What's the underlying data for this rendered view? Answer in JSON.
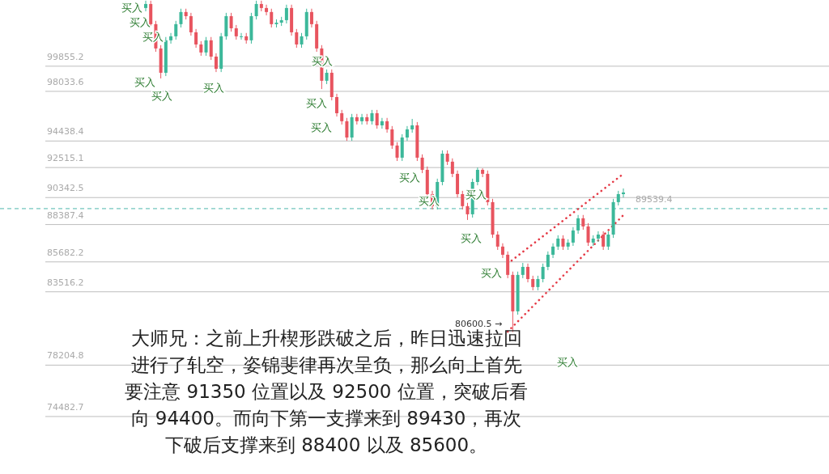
{
  "chart_data": {
    "type": "candlestick",
    "categories": [
      null,
      null,
      null,
      null,
      null,
      null,
      null,
      null,
      null,
      null,
      null,
      null,
      null,
      null,
      null,
      null,
      null,
      null,
      null,
      null,
      null,
      null,
      null,
      null,
      null,
      null,
      null,
      null,
      null,
      null,
      null,
      null,
      null,
      null,
      null,
      null,
      null,
      null,
      null,
      null,
      null,
      null,
      null,
      null,
      null,
      null,
      null,
      null,
      null,
      null,
      null,
      null,
      null,
      null,
      null,
      null,
      null,
      null,
      null,
      null,
      null,
      null,
      null,
      null,
      null,
      null,
      null,
      null,
      null,
      null,
      null,
      null,
      null,
      null,
      null,
      null,
      null,
      null,
      null,
      null,
      null,
      null,
      null,
      null,
      null,
      null,
      null,
      null,
      null,
      null,
      null,
      null,
      null,
      null,
      null,
      null
    ],
    "ylim": [
      70320,
      104650
    ],
    "tick_labels": false,
    "ohlc": [
      [
        104070,
        104600,
        103830,
        104360
      ],
      [
        104360,
        104600,
        102660,
        102900
      ],
      [
        102900,
        103140,
        100900,
        101140
      ],
      [
        101140,
        101380,
        98970,
        99380
      ],
      [
        99380,
        101970,
        99140,
        101730
      ],
      [
        101730,
        102260,
        101490,
        102020
      ],
      [
        102020,
        103140,
        101780,
        102900
      ],
      [
        102900,
        104020,
        102660,
        103780
      ],
      [
        103780,
        104020,
        103240,
        103480
      ],
      [
        103480,
        103720,
        102070,
        102310
      ],
      [
        102310,
        102550,
        101190,
        101430
      ],
      [
        101430,
        101670,
        100610,
        100850
      ],
      [
        100850,
        101970,
        100610,
        101730
      ],
      [
        101730,
        101970,
        100310,
        100550
      ],
      [
        100550,
        100790,
        99430,
        99670
      ],
      [
        99670,
        102260,
        99430,
        102020
      ],
      [
        102020,
        103720,
        101780,
        103480
      ],
      [
        103480,
        103720,
        102360,
        102600
      ],
      [
        102600,
        102840,
        101780,
        102020
      ],
      [
        102020,
        102260,
        101780,
        102020
      ],
      [
        102020,
        102260,
        101490,
        101730
      ],
      [
        101730,
        103720,
        101490,
        103480
      ],
      [
        103480,
        104600,
        103240,
        104360
      ],
      [
        104360,
        104600,
        103830,
        104070
      ],
      [
        104070,
        104310,
        103540,
        103780
      ],
      [
        103780,
        104020,
        102660,
        102900
      ],
      [
        102900,
        103250,
        102660,
        103010
      ],
      [
        103010,
        103430,
        102770,
        103190
      ],
      [
        103190,
        104310,
        102950,
        104070
      ],
      [
        104070,
        104310,
        102070,
        102310
      ],
      [
        102310,
        102550,
        101190,
        101430
      ],
      [
        101430,
        102260,
        101190,
        102020
      ],
      [
        102020,
        104020,
        101780,
        103780
      ],
      [
        103780,
        104020,
        102660,
        102900
      ],
      [
        102900,
        103140,
        100900,
        101140
      ],
      [
        101140,
        101380,
        98200,
        98800
      ],
      [
        98800,
        99620,
        98560,
        99380
      ],
      [
        99380,
        99620,
        97380,
        97620
      ],
      [
        97620,
        97860,
        96210,
        96450
      ],
      [
        96450,
        96690,
        95630,
        95870
      ],
      [
        95870,
        96110,
        94450,
        94690
      ],
      [
        94690,
        96400,
        94450,
        96160
      ],
      [
        96160,
        96400,
        95630,
        95870
      ],
      [
        95870,
        96400,
        95630,
        96160
      ],
      [
        96160,
        96400,
        95630,
        95870
      ],
      [
        95870,
        96690,
        95630,
        96450
      ],
      [
        96450,
        96690,
        95330,
        95570
      ],
      [
        95570,
        96110,
        95330,
        95870
      ],
      [
        95870,
        96110,
        95040,
        95280
      ],
      [
        95280,
        95520,
        93870,
        94110
      ],
      [
        94110,
        94350,
        92990,
        93230
      ],
      [
        93230,
        94930,
        92990,
        94690
      ],
      [
        94690,
        95520,
        94450,
        95280
      ],
      [
        95280,
        96040,
        95040,
        95570
      ],
      [
        95570,
        95810,
        92990,
        93230
      ],
      [
        93230,
        93470,
        92110,
        92350
      ],
      [
        92350,
        92590,
        90350,
        90590
      ],
      [
        90590,
        90830,
        89480,
        89720
      ],
      [
        89720,
        91710,
        89480,
        91470
      ],
      [
        91470,
        93760,
        91230,
        93520
      ],
      [
        93520,
        93760,
        92700,
        92940
      ],
      [
        92940,
        93180,
        91820,
        92060
      ],
      [
        92060,
        92300,
        90350,
        90590
      ],
      [
        90590,
        90830,
        89480,
        89720
      ],
      [
        89720,
        89960,
        88720,
        89130
      ],
      [
        89130,
        91710,
        88890,
        91470
      ],
      [
        91470,
        92515.1,
        91230,
        92350
      ],
      [
        92350,
        92460,
        91820,
        92060
      ],
      [
        92060,
        92300,
        89770,
        90010
      ],
      [
        90010,
        90250,
        87420,
        87660
      ],
      [
        87660,
        87900,
        86550,
        86790
      ],
      [
        86790,
        87030,
        85960,
        86200
      ],
      [
        86200,
        86440,
        84500,
        84740
      ],
      [
        84740,
        84980,
        80600.5,
        82100
      ],
      [
        82100,
        84980,
        81860,
        84740
      ],
      [
        84740,
        85610,
        84500,
        85320
      ],
      [
        85320,
        85560,
        84200,
        84440
      ],
      [
        84440,
        84680,
        83620,
        83860
      ],
      [
        83860,
        84680,
        83620,
        84440
      ],
      [
        84440,
        85560,
        84200,
        85320
      ],
      [
        85320,
        86440,
        85080,
        86200
      ],
      [
        86200,
        87030,
        85960,
        86790
      ],
      [
        86790,
        87610,
        86550,
        87370
      ],
      [
        87370,
        87610,
        86550,
        86790
      ],
      [
        86790,
        87320,
        86550,
        87080
      ],
      [
        87080,
        88200,
        86840,
        87960
      ],
      [
        87960,
        89080,
        87720,
        88840
      ],
      [
        88840,
        89080,
        88010,
        88250
      ],
      [
        88250,
        88490,
        86840,
        87080
      ],
      [
        87080,
        87610,
        86840,
        87370
      ],
      [
        87370,
        87900,
        87130,
        87660
      ],
      [
        87660,
        87900,
        86550,
        86790
      ],
      [
        86790,
        87900,
        86550,
        87660
      ],
      [
        87660,
        90250,
        87420,
        90010
      ],
      [
        90010,
        90830,
        89770,
        90590
      ],
      [
        90590,
        91000,
        90350,
        90710
      ]
    ],
    "series": [
      {
        "type": "line",
        "color": "#e53945",
        "line_style": "dotted",
        "values": [
          null,
          null,
          null,
          null,
          null,
          null,
          null,
          null,
          null,
          null,
          null,
          null,
          null,
          null,
          null,
          null,
          null,
          null,
          null,
          null,
          null,
          null,
          null,
          null,
          null,
          null,
          null,
          null,
          null,
          null,
          null,
          null,
          null,
          null,
          null,
          null,
          null,
          null,
          null,
          null,
          null,
          null,
          null,
          null,
          null,
          null,
          null,
          null,
          null,
          null,
          null,
          null,
          null,
          null,
          null,
          null,
          null,
          null,
          null,
          null,
          null,
          null,
          null,
          null,
          null,
          null,
          null,
          null,
          null,
          null,
          null,
          null,
          85560,
          null,
          null,
          null,
          null,
          null,
          null,
          null,
          null,
          null,
          null,
          null,
          null,
          null,
          null,
          null,
          null,
          null,
          null,
          null,
          null,
          null,
          null,
          92060
        ]
      },
      {
        "type": "line",
        "color": "#e53945",
        "line_style": "dotted",
        "values": [
          null,
          null,
          null,
          null,
          null,
          null,
          null,
          null,
          null,
          null,
          null,
          null,
          null,
          null,
          null,
          null,
          null,
          null,
          null,
          null,
          null,
          null,
          null,
          null,
          null,
          null,
          null,
          null,
          null,
          null,
          null,
          null,
          null,
          null,
          null,
          null,
          null,
          null,
          null,
          null,
          null,
          null,
          null,
          null,
          null,
          null,
          null,
          null,
          null,
          null,
          null,
          null,
          null,
          null,
          null,
          null,
          null,
          null,
          null,
          null,
          null,
          null,
          null,
          null,
          null,
          null,
          null,
          null,
          null,
          null,
          null,
          null,
          80630,
          null,
          null,
          null,
          null,
          null,
          null,
          null,
          null,
          null,
          null,
          null,
          null,
          null,
          null,
          null,
          null,
          null,
          null,
          null,
          null,
          null,
          null,
          89070
        ]
      }
    ],
    "ref_lines": [
      {
        "axis": "y",
        "value": 99855.2,
        "label": "99855.2",
        "color": "#bdbdbd"
      },
      {
        "axis": "y",
        "value": 98033.6,
        "label": "98033.6",
        "color": "#bdbdbd"
      },
      {
        "axis": "y",
        "value": 94438.4,
        "label": "94438.4",
        "color": "#bdbdbd"
      },
      {
        "axis": "y",
        "value": 92515.1,
        "label": "92515.1",
        "color": "#bdbdbd"
      },
      {
        "axis": "y",
        "value": 90342.5,
        "label": "90342.5",
        "color": "#bdbdbd"
      },
      {
        "axis": "y",
        "value": 89539.4,
        "label": "89539.4",
        "color": "#4db6ac",
        "line_style": "dashed"
      },
      {
        "axis": "y",
        "value": 88387.4,
        "label": "88387.4",
        "color": "#bdbdbd"
      },
      {
        "axis": "y",
        "value": 85682.2,
        "label": "85682.2",
        "color": "#bdbdbd"
      },
      {
        "axis": "y",
        "value": 83516.2,
        "label": "83516.2",
        "color": "#bdbdbd"
      },
      {
        "axis": "y",
        "value": 78204.8,
        "label": "78204.8",
        "color": "#bdbdbd"
      },
      {
        "axis": "y",
        "value": 74482.7,
        "label": "74482.7",
        "color": "#bdbdbd"
      }
    ],
    "annotations": [
      "买入",
      "买入",
      "买入",
      "买入",
      "买入",
      "买入",
      "买入",
      "买入",
      "买入",
      "买入",
      "买入",
      "买入",
      "买入",
      "买入",
      "买入",
      "80600.5 →",
      "大师兄：之前上升楔形跌破之后，昨日迅速拉回",
      "进行了轧空，姿锦斐律再次呈负，那么向上首先",
      "要注意 91350 位置以及 92500 位置，突破后看",
      "向 94400。而向下第一支撑来到 89430，再次",
      "下破后支撑来到 88400 以及 85600。"
    ]
  }
}
